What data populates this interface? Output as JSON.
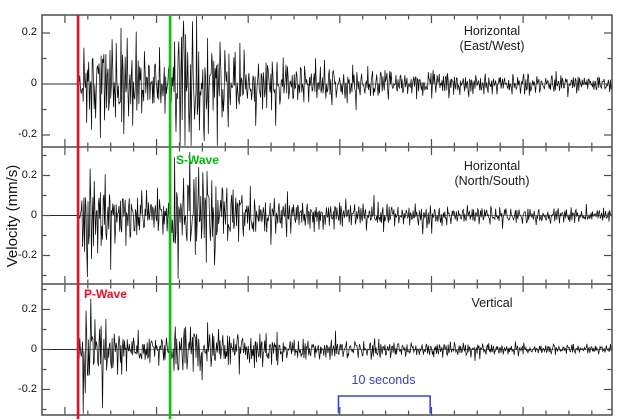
{
  "ylabel": "Velocity (mm/s)",
  "y_tick_labels": [
    "0.2",
    "0",
    "-0.2"
  ],
  "panels": [
    {
      "label_line1": "Horizontal",
      "label_line2": "(East/West)"
    },
    {
      "label_line1": "Horizontal",
      "label_line2": "(North/South)"
    },
    {
      "label_line1": "Vertical",
      "label_line2": ""
    }
  ],
  "markers": {
    "p_wave": {
      "label": "P-Wave",
      "color": "#e8112d"
    },
    "s_wave": {
      "label": "S-Wave",
      "color": "#00c80e"
    }
  },
  "scale_bar": {
    "label": "10 seconds",
    "seconds": 10,
    "color": "#4347c5"
  },
  "chart_data": {
    "type": "line",
    "title": "Three-component seismogram",
    "ylabel": "Velocity (mm/s)",
    "x_axis": {
      "unit": "seconds",
      "duration_s": 62.2,
      "minor_tick_s": 2.5,
      "major_tick_s": 10,
      "scale_bar_s": 10
    },
    "events": [
      {
        "label": "P-Wave",
        "arrival_s": 3.93,
        "color": "#e8112d"
      },
      {
        "label": "S-Wave",
        "arrival_s": 13.97,
        "color": "#00c80e"
      }
    ],
    "panels": [
      {
        "name": "Horizontal (East/West)",
        "yticks": [
          0.2,
          0,
          -0.2
        ],
        "ylim": [
          -0.26,
          0.27
        ],
        "peak_amplitude_mm_s": 0.26,
        "bursts": [
          {
            "t0": 3.95,
            "rise": 0.9,
            "amp": 0.22,
            "decay": 6
          },
          {
            "t0": 5.5,
            "rise": 3.0,
            "amp": 0.08,
            "decay": 33
          },
          {
            "t0": 13.8,
            "rise": 1.1,
            "amp": 0.24,
            "decay": 6.5
          },
          {
            "t0": 22.0,
            "rise": 11.0,
            "amp": 0.022,
            "decay": 9999
          }
        ]
      },
      {
        "name": "Horizontal (North/South)",
        "yticks": [
          0.2,
          0,
          -0.2
        ],
        "ylim": [
          -0.34,
          0.34
        ],
        "peak_amplitude_mm_s": 0.33,
        "bursts": [
          {
            "t0": 3.95,
            "rise": 0.7,
            "amp": 0.33,
            "decay": 2.7
          },
          {
            "t0": 5.2,
            "rise": 2.2,
            "amp": 0.1,
            "decay": 27
          },
          {
            "t0": 13.8,
            "rise": 0.9,
            "amp": 0.27,
            "decay": 6
          },
          {
            "t0": 26.0,
            "rise": 13.0,
            "amp": 0.025,
            "decay": 9999
          }
        ]
      },
      {
        "name": "Vertical",
        "yticks": [
          0.2,
          0,
          -0.2
        ],
        "ylim": [
          -0.33,
          0.33
        ],
        "peak_amplitude_mm_s": 0.33,
        "bursts": [
          {
            "t0": 3.95,
            "rise": 0.55,
            "amp": 0.36,
            "decay": 1.5
          },
          {
            "t0": 5.0,
            "rise": 1.6,
            "amp": 0.1,
            "decay": 16
          },
          {
            "t0": 13.4,
            "rise": 1.6,
            "amp": 0.1,
            "decay": 13
          },
          {
            "t0": 28.0,
            "rise": 16.0,
            "amp": 0.018,
            "decay": 9999
          }
        ]
      }
    ]
  }
}
